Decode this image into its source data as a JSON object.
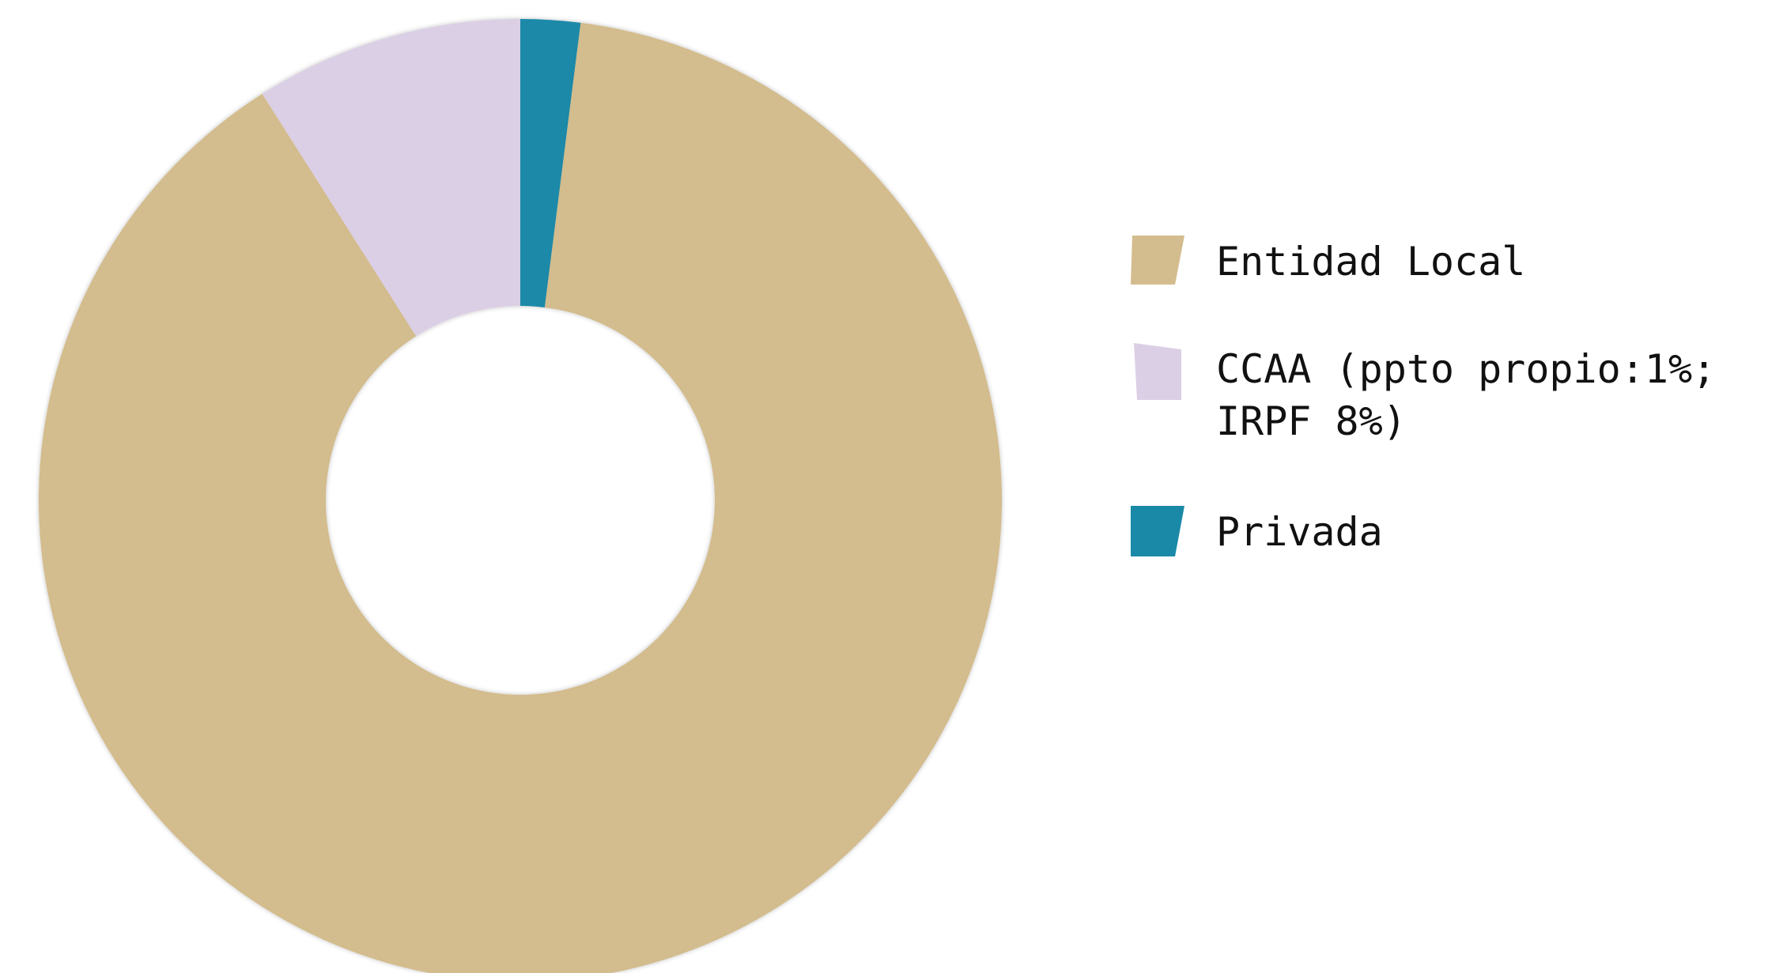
{
  "chart_data": {
    "type": "donut",
    "categories": [
      "Entidad Local",
      "CCAA (ppto propio:1%; IRPF 8%)",
      "Privada"
    ],
    "values": [
      89,
      9,
      2
    ],
    "colors": [
      "#d3bc8d",
      "#dbcfe5",
      "#1a89a8"
    ],
    "legend": "right"
  }
}
